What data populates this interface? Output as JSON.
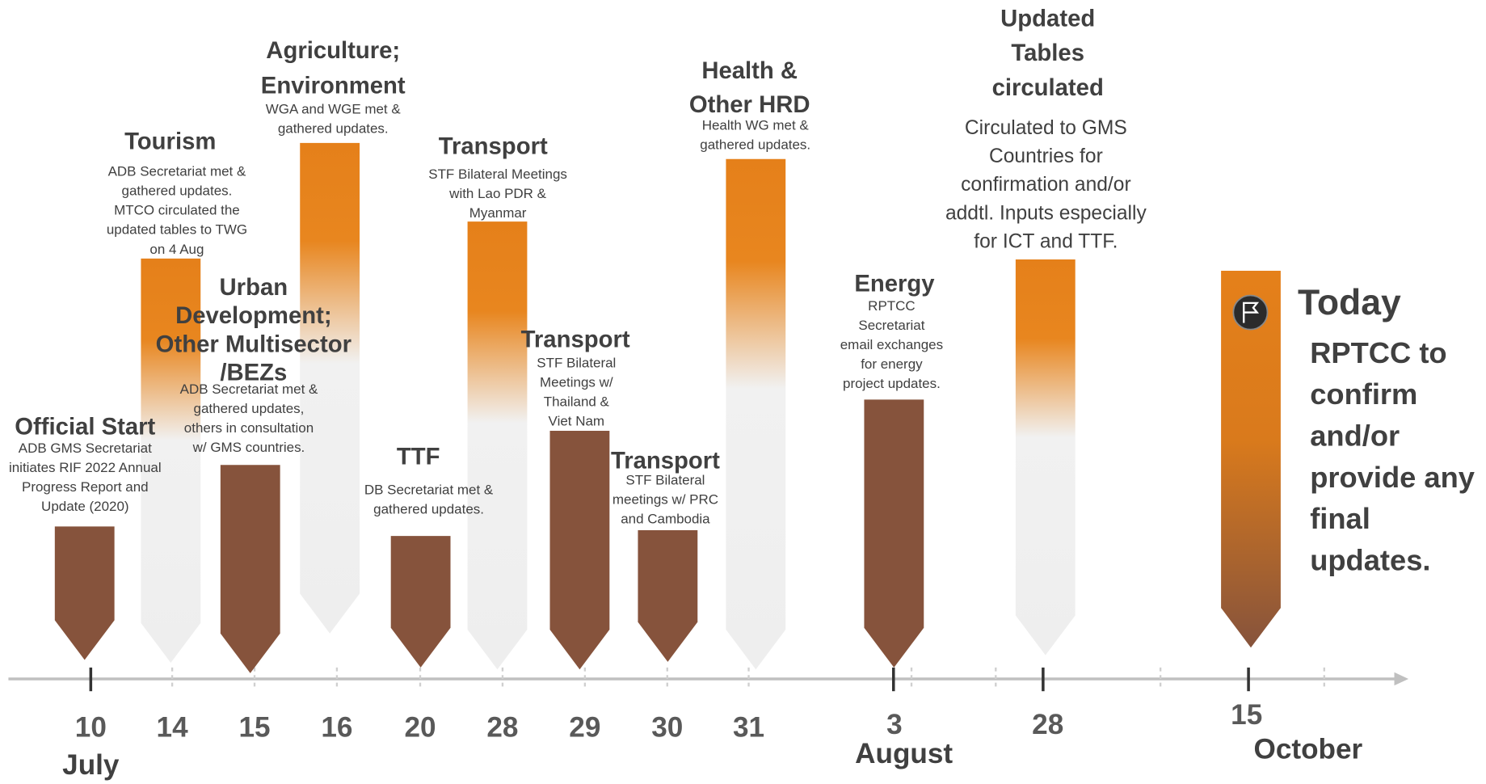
{
  "events": [
    {
      "title": [
        "Official Start"
      ],
      "description": [
        "ADB GMS Secretariat",
        "initiates RIF 2022 Annual",
        "Progress Report and",
        "Update (2020)"
      ],
      "day": "10"
    },
    {
      "title": [
        "Tourism"
      ],
      "description": [
        "ADB Secretariat met &",
        "gathered updates.",
        "MTCO circulated the",
        "updated tables to TWG",
        "on 4 Aug"
      ],
      "day": "14"
    },
    {
      "title": [
        "Urban",
        "Development;",
        "Other Multisector",
        "/BEZs"
      ],
      "description": [
        "ADB Secretariat met &",
        "gathered updates,",
        "others in consultation",
        "w/ GMS countries."
      ],
      "day": "15"
    },
    {
      "title": [
        "Agriculture;",
        "Environment"
      ],
      "description": [
        "WGA and WGE met &",
        "gathered updates."
      ],
      "day": "16"
    },
    {
      "title": [
        "TTF"
      ],
      "description": [
        "DB Secretariat met &",
        "gathered updates."
      ],
      "day": "20"
    },
    {
      "title": [
        "Transport"
      ],
      "description": [
        "STF Bilateral Meetings",
        "with Lao PDR &",
        "Myanmar"
      ],
      "day": "28"
    },
    {
      "title": [
        "Transport"
      ],
      "description": [
        "STF Bilateral",
        "Meetings w/",
        "Thailand &",
        "Viet Nam"
      ],
      "day": "29"
    },
    {
      "title": [
        "Transport"
      ],
      "description": [
        "STF Bilateral",
        "meetings w/ PRC",
        "and Cambodia"
      ],
      "day": "30"
    },
    {
      "title": [
        "Health &",
        "Other HRD"
      ],
      "description": [
        "Health WG met &",
        "gathered updates."
      ],
      "day": "31"
    },
    {
      "title": [
        "Energy"
      ],
      "description": [
        "RPTCC",
        "Secretariat",
        "email exchanges",
        "for energy",
        "project updates."
      ],
      "day": "3"
    },
    {
      "title": [
        "Updated",
        "Tables",
        "circulated"
      ],
      "description": [
        "Circulated to GMS",
        "Countries  for",
        "confirmation and/or",
        "addtl. Inputs especially",
        "for ICT and TTF."
      ],
      "day": "28"
    },
    {
      "title": [
        "Today"
      ],
      "description": [
        "RPTCC to",
        "confirm",
        "and/or",
        "provide any",
        "final",
        "updates."
      ],
      "day": "15"
    }
  ],
  "months": [
    "July",
    "August",
    "October"
  ]
}
